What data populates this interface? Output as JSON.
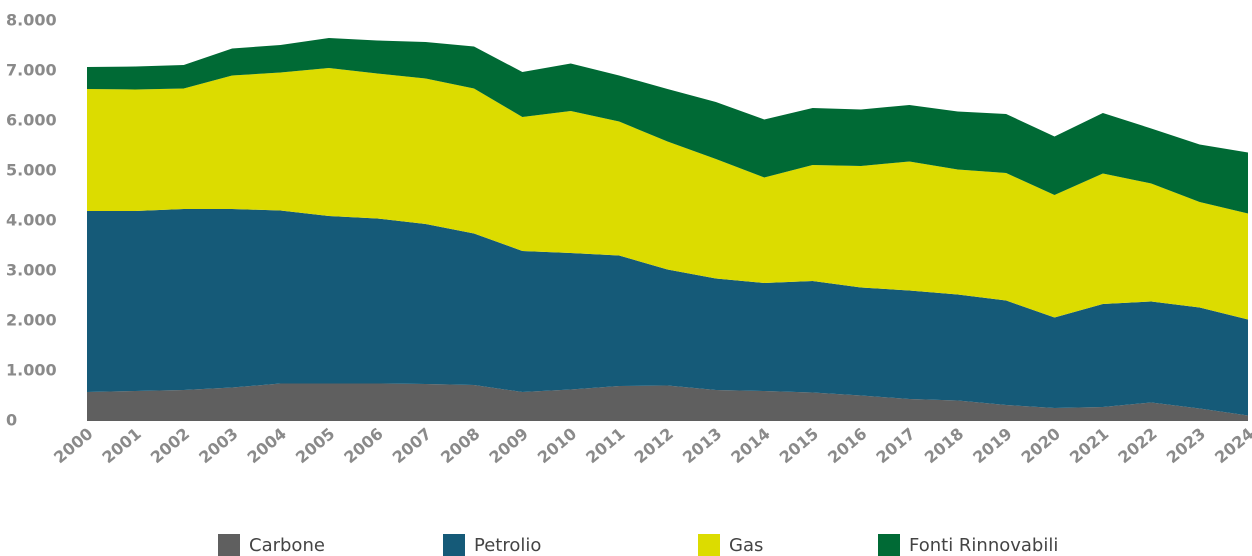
{
  "chart_data": {
    "type": "stacked_area",
    "categories": [
      "2000",
      "2001",
      "2002",
      "2003",
      "2004",
      "2005",
      "2006",
      "2007",
      "2008",
      "2009",
      "2010",
      "2011",
      "2012",
      "2013",
      "2014",
      "2015",
      "2016",
      "2017",
      "2018",
      "2019",
      "2020",
      "2021",
      "2022",
      "2023",
      "2024"
    ],
    "series": [
      {
        "name": "Carbone",
        "color": "#5f5f5f",
        "values": [
          580,
          600,
          620,
          670,
          750,
          750,
          750,
          740,
          720,
          580,
          630,
          700,
          710,
          620,
          600,
          570,
          510,
          440,
          410,
          320,
          260,
          280,
          370,
          250,
          110
        ]
      },
      {
        "name": "Petrolio",
        "color": "#155a78",
        "values": [
          3620,
          3600,
          3620,
          3570,
          3460,
          3350,
          3300,
          3200,
          3030,
          2820,
          2730,
          2610,
          2320,
          2230,
          2160,
          2230,
          2160,
          2170,
          2120,
          2090,
          1810,
          2060,
          2020,
          2020,
          1920
        ]
      },
      {
        "name": "Gas",
        "color": "#dcdc00",
        "values": [
          2440,
          2430,
          2410,
          2670,
          2760,
          2960,
          2900,
          2910,
          2900,
          2680,
          2840,
          2680,
          2560,
          2390,
          2110,
          2320,
          2430,
          2580,
          2500,
          2550,
          2450,
          2610,
          2360,
          2110,
          2120
        ]
      },
      {
        "name": "Fonti Rinnovabili",
        "color": "#006a35",
        "values": [
          440,
          460,
          470,
          540,
          550,
          600,
          660,
          730,
          840,
          900,
          950,
          920,
          1050,
          1140,
          1160,
          1140,
          1130,
          1130,
          1160,
          1180,
          1170,
          1210,
          1100,
          1150,
          1220
        ]
      }
    ],
    "ylim": [
      0,
      8000
    ],
    "yticks": [
      0,
      {
        "value": 1000,
        "label": "1.000"
      },
      {
        "value": 2000,
        "label": "2.000"
      },
      {
        "value": 3000,
        "label": "3.000"
      },
      {
        "value": 4000,
        "label": "4.000"
      },
      {
        "value": 5000,
        "label": "5.000"
      },
      {
        "value": 6000,
        "label": "6.000"
      },
      {
        "value": 7000,
        "label": "7.000"
      },
      {
        "value": 8000,
        "label": "8.000"
      }
    ],
    "legend": "bottom"
  }
}
